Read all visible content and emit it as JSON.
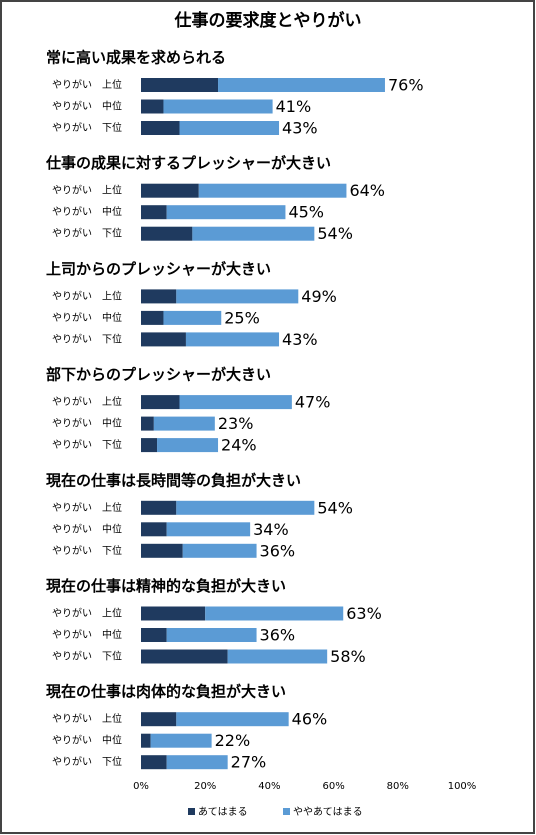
{
  "chart_data": {
    "type": "stacked-barh",
    "title": "仕事の要求度とやりがい",
    "group_titles": [
      "常に高い成果を求められる",
      "仕事の成果に対するプレッシャーが大きい",
      "上司からのプレッシャーが大きい",
      "部下からのプレッシャーが大きい",
      "現在の仕事は長時間等の負担が大きい",
      "現在の仕事は精神的な負担が大きい",
      "現在の仕事は肉体的な負担が大きい"
    ],
    "categories": [
      "やりがい　上位",
      "やりがい　中位",
      "やりがい　下位",
      "やりがい　上位",
      "やりがい　中位",
      "やりがい　下位",
      "やりがい　上位",
      "やりがい　中位",
      "やりがい　下位",
      "やりがい　上位",
      "やりがい　中位",
      "やりがい　下位",
      "やりがい　上位",
      "やりがい　中位",
      "やりがい　下位",
      "やりがい　上位",
      "やりがい　中位",
      "やりがい　下位",
      "やりがい　上位",
      "やりがい　中位",
      "やりがい　下位"
    ],
    "series": [
      {
        "name": "あてはまる",
        "color": "#1f3a5f",
        "values": [
          24,
          7,
          12,
          18,
          8,
          16,
          11,
          7,
          14,
          12,
          4,
          5,
          11,
          8,
          13,
          20,
          8,
          27,
          11,
          3,
          8
        ]
      },
      {
        "name": "ややあてはまる",
        "color": "#5b9bd5",
        "values": [
          52,
          34,
          31,
          46,
          37,
          38,
          38,
          18,
          29,
          35,
          19,
          19,
          43,
          26,
          23,
          43,
          28,
          31,
          35,
          19,
          19
        ]
      }
    ],
    "totals": [
      76,
      41,
      43,
      64,
      45,
      54,
      49,
      25,
      43,
      47,
      23,
      24,
      54,
      34,
      36,
      63,
      36,
      58,
      46,
      22,
      27
    ],
    "total_labels": [
      "76%",
      "41%",
      "43%",
      "64%",
      "45%",
      "54%",
      "49%",
      "25%",
      "43%",
      "47%",
      "23%",
      "24%",
      "54%",
      "34%",
      "36%",
      "63%",
      "36%",
      "58%",
      "46%",
      "22%",
      "27%"
    ],
    "xlim": [
      0,
      100
    ],
    "xticks": [
      {
        "value": 0,
        "label": "0%"
      },
      {
        "value": 20,
        "label": "20%"
      },
      {
        "value": 40,
        "label": "40%"
      },
      {
        "value": 60,
        "label": "60%"
      },
      {
        "value": 80,
        "label": "80%"
      },
      {
        "value": 100,
        "label": "100%"
      }
    ],
    "legend": "bottom"
  }
}
